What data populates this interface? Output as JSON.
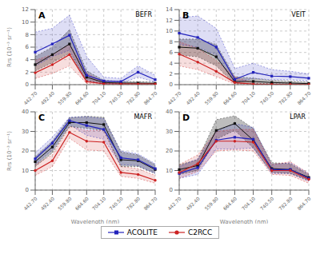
{
  "chart_data": [
    {
      "type": "line",
      "title": "BEFR",
      "annotations": [
        "A"
      ],
      "categories": [
        "442.70",
        "492.40",
        "559.80",
        "664.60",
        "704.10",
        "740.50",
        "782.80",
        "864.70"
      ],
      "ylabel": "Rrs (10⁻³ sr⁻¹)",
      "ylim": [
        0,
        12
      ],
      "yticks": [
        0,
        2,
        4,
        6,
        8,
        10,
        12
      ],
      "grid": true,
      "legend": "bottom",
      "series": [
        {
          "color": "#111111",
          "marker": "square",
          "line_style": "solid",
          "values": [
            3.2,
            4.8,
            6.5,
            1.2,
            0.35,
            0.25,
            0.25,
            0.2
          ],
          "upper": [
            4.5,
            6.0,
            8.8,
            2.2,
            0.7,
            0.5,
            0.5,
            0.4
          ],
          "lower": [
            2.2,
            3.5,
            5.0,
            0.7,
            0.15,
            0.1,
            0.1,
            0.08
          ]
        },
        {
          "name": "ACOLITE",
          "color": "#2222bb",
          "marker": "square",
          "line_style": "solid",
          "values": [
            5.2,
            6.5,
            7.9,
            1.5,
            0.6,
            0.5,
            2.0,
            0.8
          ],
          "upper": [
            8.4,
            9.0,
            11.1,
            4.5,
            1.2,
            1.0,
            3.0,
            1.5
          ],
          "lower": [
            3.0,
            4.5,
            5.5,
            0.5,
            0.2,
            0.2,
            1.2,
            0.4
          ]
        },
        {
          "name": "C2RCC",
          "color": "#cc2222",
          "marker": "circle",
          "line_style": "solid",
          "values": [
            1.9,
            3.2,
            4.8,
            0.5,
            0.15,
            0.1,
            0.1,
            0.1
          ],
          "upper": [
            3.9,
            4.8,
            6.5,
            1.8,
            0.4,
            0.25,
            0.2,
            0.15
          ],
          "lower": [
            1.0,
            1.8,
            3.0,
            0.2,
            0.05,
            0.05,
            0.05,
            0.05
          ]
        }
      ]
    },
    {
      "type": "line",
      "title": "VEIT",
      "annotations": [
        "B"
      ],
      "categories": [
        "442.70",
        "492.40",
        "559.80",
        "664.60",
        "704.10",
        "740.50",
        "782.80",
        "864.70"
      ],
      "ylim": [
        0,
        14
      ],
      "yticks": [
        0,
        2,
        4,
        6,
        8,
        10,
        12,
        14
      ],
      "grid": true,
      "legend": "bottom",
      "series": [
        {
          "color": "#111111",
          "marker": "square",
          "line_style": "solid",
          "values": [
            7.0,
            6.8,
            5.2,
            0.6,
            0.6,
            0.4,
            0.3,
            0.2
          ],
          "upper": [
            8.5,
            8.5,
            7.5,
            1.5,
            1.2,
            0.8,
            0.65,
            0.5
          ],
          "lower": [
            5.5,
            5.2,
            3.5,
            0.2,
            0.2,
            0.15,
            0.1,
            0.08
          ]
        },
        {
          "name": "ACOLITE",
          "color": "#2222bb",
          "marker": "square",
          "line_style": "solid",
          "values": [
            9.6,
            8.8,
            7.0,
            1.0,
            2.3,
            1.6,
            1.5,
            1.2
          ],
          "upper": [
            12.5,
            12.8,
            10.5,
            3.0,
            4.0,
            2.8,
            2.5,
            2.0
          ],
          "lower": [
            7.5,
            7.0,
            5.5,
            0.3,
            1.2,
            0.9,
            0.9,
            0.7
          ]
        },
        {
          "name": "C2RCC",
          "color": "#cc2222",
          "marker": "circle",
          "line_style": "solid",
          "values": [
            5.7,
            4.2,
            2.5,
            0.4,
            0.1,
            0.05,
            0.05,
            0.05
          ],
          "upper": [
            8.0,
            6.8,
            4.5,
            1.5,
            0.3,
            0.15,
            0.12,
            0.1
          ],
          "lower": [
            3.5,
            2.8,
            1.5,
            0.1,
            0.03,
            0.02,
            0.02,
            0.02
          ]
        }
      ]
    },
    {
      "type": "line",
      "title": "MAFR",
      "annotations": [
        "C"
      ],
      "categories": [
        "442.70",
        "492.40",
        "559.80",
        "664.60",
        "704.10",
        "740.50",
        "782.80",
        "864.70"
      ],
      "ylabel": "Rrs (10⁻³ sr⁻¹)",
      "xlabel": "Wavelength (nm)",
      "ylim": [
        0,
        40
      ],
      "yticks": [
        0,
        10,
        20,
        30,
        40
      ],
      "grid": true,
      "legend": "bottom",
      "series": [
        {
          "color": "#111111",
          "marker": "square",
          "line_style": "solid",
          "values": [
            14.5,
            22.0,
            34.5,
            34.5,
            33.5,
            15.5,
            15.0,
            10.5
          ],
          "upper": [
            17.0,
            25.0,
            37.0,
            37.8,
            37.2,
            19.5,
            18.0,
            13.0
          ],
          "lower": [
            12.0,
            19.0,
            32.5,
            31.5,
            30.5,
            12.0,
            12.0,
            8.5
          ]
        },
        {
          "name": "ACOLITE",
          "color": "#2222bb",
          "marker": "square",
          "line_style": "solid",
          "values": [
            16.0,
            24.0,
            35.5,
            33.0,
            31.0,
            16.5,
            15.5,
            11.0
          ],
          "upper": [
            19.0,
            27.0,
            37.2,
            37.5,
            36.5,
            20.0,
            18.5,
            13.5
          ],
          "lower": [
            13.0,
            20.5,
            33.5,
            28.0,
            26.0,
            13.0,
            12.5,
            8.5
          ]
        },
        {
          "name": "C2RCC",
          "color": "#cc2222",
          "marker": "circle",
          "line_style": "solid",
          "values": [
            10.0,
            15.0,
            29.5,
            25.0,
            24.5,
            9.0,
            8.0,
            5.0
          ],
          "upper": [
            13.0,
            18.0,
            32.5,
            30.5,
            30.5,
            12.0,
            11.0,
            7.5
          ],
          "lower": [
            7.5,
            12.0,
            26.5,
            20.5,
            20.0,
            7.0,
            6.0,
            3.5
          ]
        }
      ]
    },
    {
      "type": "line",
      "title": "LPAR",
      "annotations": [
        "D"
      ],
      "categories": [
        "442.70",
        "492.40",
        "559.80",
        "664.60",
        "704.10",
        "740.50",
        "782.80",
        "864.70"
      ],
      "xlabel": "Wavelength (nm)",
      "ylim": [
        0,
        40
      ],
      "yticks": [
        0,
        10,
        20,
        30,
        40
      ],
      "grid": true,
      "legend": "bottom",
      "series": [
        {
          "color": "#111111",
          "marker": "square",
          "line_style": "solid",
          "values": [
            10.5,
            12.5,
            30.5,
            34.0,
            25.5,
            11.0,
            10.5,
            6.5
          ],
          "upper": [
            13.0,
            15.5,
            36.0,
            38.0,
            31.5,
            14.0,
            13.5,
            8.0
          ],
          "lower": [
            8.0,
            10.0,
            26.0,
            30.5,
            21.5,
            9.0,
            8.5,
            5.0
          ]
        },
        {
          "name": "ACOLITE",
          "color": "#2222bb",
          "marker": "square",
          "line_style": "solid",
          "values": [
            8.5,
            11.5,
            25.5,
            27.0,
            26.0,
            10.5,
            10.5,
            6.0
          ],
          "upper": [
            12.0,
            16.0,
            30.0,
            34.0,
            32.0,
            13.0,
            14.0,
            8.5
          ],
          "lower": [
            6.0,
            8.0,
            21.0,
            21.0,
            21.5,
            8.5,
            8.5,
            4.5
          ]
        },
        {
          "name": "C2RCC",
          "color": "#cc2222",
          "marker": "circle",
          "line_style": "solid",
          "values": [
            9.0,
            13.5,
            25.0,
            25.0,
            24.5,
            10.0,
            10.0,
            5.5
          ],
          "upper": [
            13.0,
            18.0,
            30.0,
            31.0,
            31.0,
            13.0,
            14.5,
            8.5
          ],
          "lower": [
            6.0,
            9.5,
            20.0,
            20.5,
            20.0,
            8.0,
            7.5,
            3.5
          ]
        }
      ]
    }
  ]
}
